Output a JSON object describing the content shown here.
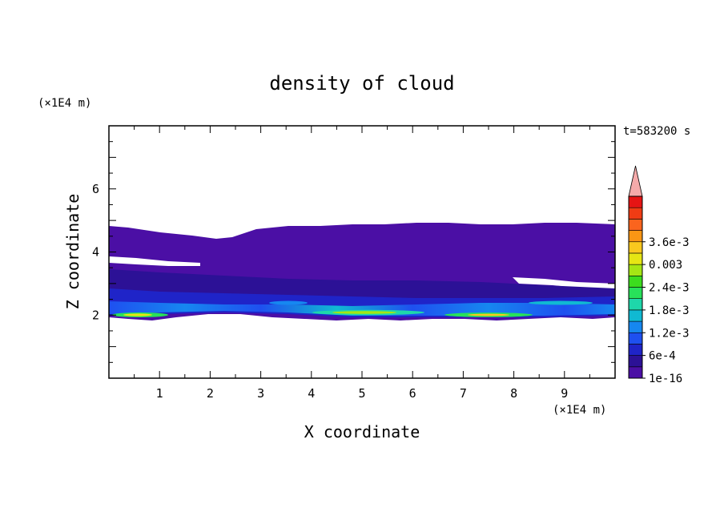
{
  "chart_data": {
    "type": "heatmap",
    "title": "density of cloud",
    "xlabel": "X coordinate",
    "ylabel": "Z coordinate",
    "x_unit": "(×1E4 m)",
    "y_unit": "(×1E4 m)",
    "time_label": "t=583200 s",
    "xlim": [
      0,
      10
    ],
    "ylim": [
      0,
      8
    ],
    "x_ticks": [
      "1",
      "2",
      "3",
      "4",
      "5",
      "6",
      "7",
      "8",
      "9"
    ],
    "y_ticks": [
      "2",
      "4",
      "6"
    ],
    "colorbar": {
      "labels": [
        "1e-16",
        "6e-4",
        "1.2e-3",
        "1.8e-3",
        "2.4e-3",
        "0.003",
        "3.6e-3"
      ],
      "colors": [
        "#4b0fa5",
        "#2c1196",
        "#1f24c8",
        "#1e50f0",
        "#1687f0",
        "#10b9d2",
        "#1ed7aa",
        "#28e15a",
        "#3cdc1e",
        "#a5e614",
        "#e6e614",
        "#fac81e",
        "#fa9614",
        "#fa641e",
        "#f03c14",
        "#e61414",
        "#f5aaaa"
      ],
      "extend_max": true
    },
    "cloud_layer": {
      "top_z_approx": 4.8,
      "base_z_approx": 1.9,
      "max_density_z_approx": 2.0,
      "max_density_level": "2.4e-3 to 3.0e-3"
    }
  }
}
